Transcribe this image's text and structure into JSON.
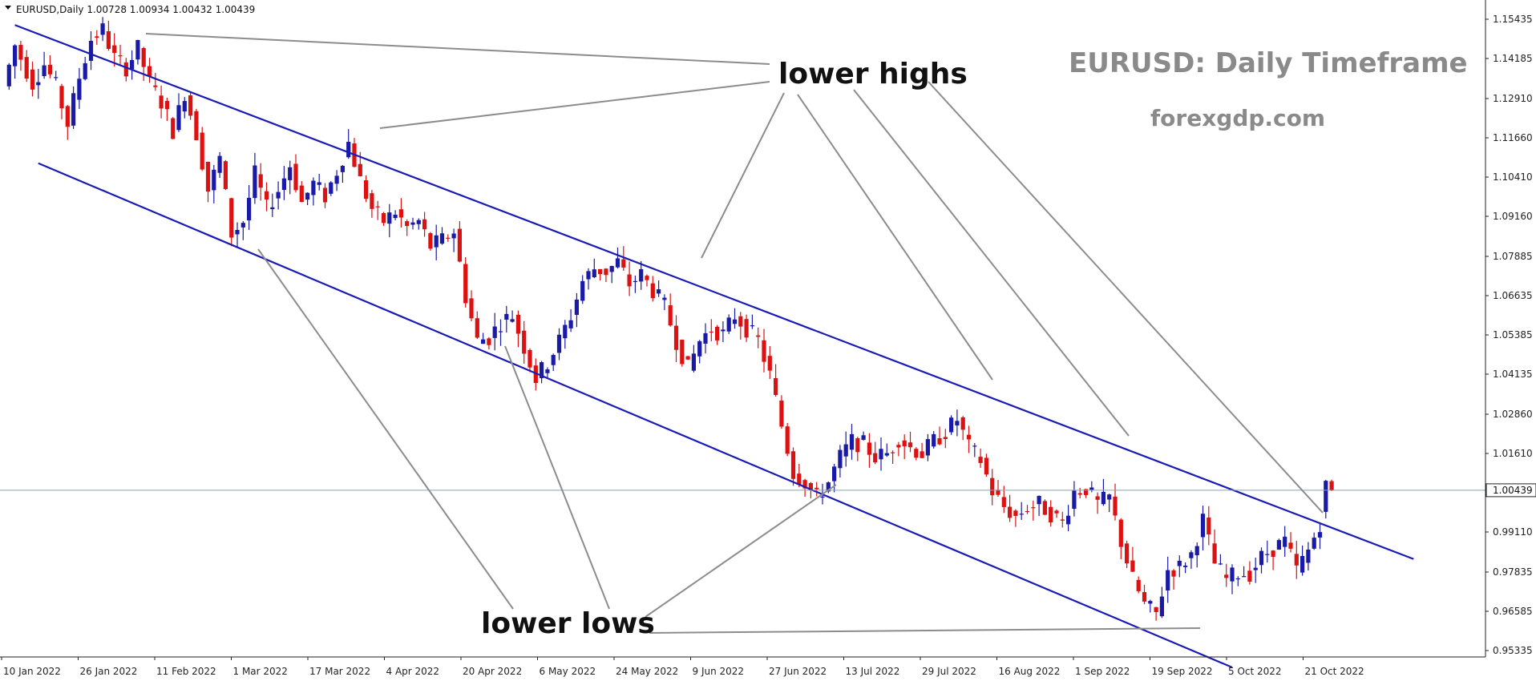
{
  "chart_data": {
    "type": "candlestick",
    "symbol_header": "EURUSD,Daily  1.00728 1.00934 1.00432 1.00439",
    "title": "EURUSD: Daily Timeframe",
    "subtitle": "forexgdp.com",
    "annotations": {
      "highs": "lower highs",
      "lows": "lower lows"
    },
    "current_price_label": "1.00439",
    "current_price": 1.00439,
    "y_ticks": [
      "1.15435",
      "1.14185",
      "1.12910",
      "1.11660",
      "1.10410",
      "1.09160",
      "1.07885",
      "1.06635",
      "1.05385",
      "1.04135",
      "1.02860",
      "1.01610",
      "0.99110",
      "0.97835",
      "0.96585",
      "0.95335"
    ],
    "x_ticks": [
      "10 Jan 2022",
      "26 Jan 2022",
      "11 Feb 2022",
      "1 Mar 2022",
      "17 Mar 2022",
      "4 Apr 2022",
      "20 Apr 2022",
      "6 May 2022",
      "24 May 2022",
      "9 Jun 2022",
      "27 Jun 2022",
      "13 Jul 2022",
      "29 Jul 2022",
      "16 Aug 2022",
      "1 Sep 2022",
      "19 Sep 2022",
      "5 Oct 2022",
      "21 Oct 2022"
    ],
    "ylim": [
      0.9475,
      1.1595
    ],
    "up_color": "#1a1aa8",
    "down_color": "#dd1111",
    "channel_color": "#1a1ab4",
    "annotation_line_color": "#8c8c8c",
    "grid": false,
    "channel": {
      "upper": [
        [
          2,
          1.1525
        ],
        [
          241,
          0.9825
        ]
      ],
      "lower": [
        [
          6,
          1.1085
        ],
        [
          210,
          0.948
        ]
      ]
    },
    "price_path": [
      [
        0,
        1.133
      ],
      [
        2,
        1.146
      ],
      [
        5,
        1.134
      ],
      [
        7,
        1.14
      ],
      [
        9,
        1.133
      ],
      [
        11,
        1.121
      ],
      [
        13,
        1.136
      ],
      [
        15,
        1.148
      ],
      [
        17,
        1.151
      ],
      [
        19,
        1.142
      ],
      [
        21,
        1.139
      ],
      [
        23,
        1.145
      ],
      [
        25,
        1.134
      ],
      [
        27,
        1.128
      ],
      [
        29,
        1.119
      ],
      [
        31,
        1.131
      ],
      [
        33,
        1.118
      ],
      [
        35,
        1.1
      ],
      [
        37,
        1.11
      ],
      [
        39,
        1.086
      ],
      [
        41,
        1.09
      ],
      [
        43,
        1.105
      ],
      [
        45,
        1.094
      ],
      [
        47,
        1.1
      ],
      [
        49,
        1.108
      ],
      [
        51,
        1.096
      ],
      [
        53,
        1.102
      ],
      [
        55,
        1.098
      ],
      [
        57,
        1.106
      ],
      [
        59,
        1.115
      ],
      [
        61,
        1.103
      ],
      [
        63,
        1.094
      ],
      [
        65,
        1.09
      ],
      [
        67,
        1.093
      ],
      [
        69,
        1.088
      ],
      [
        71,
        1.09
      ],
      [
        73,
        1.082
      ],
      [
        75,
        1.084
      ],
      [
        77,
        1.087
      ],
      [
        79,
        1.066
      ],
      [
        81,
        1.052
      ],
      [
        83,
        1.053
      ],
      [
        85,
        1.058
      ],
      [
        87,
        1.06
      ],
      [
        89,
        1.05
      ],
      [
        91,
        1.04
      ],
      [
        93,
        1.045
      ],
      [
        95,
        1.052
      ],
      [
        97,
        1.06
      ],
      [
        99,
        1.071
      ],
      [
        101,
        1.075
      ],
      [
        103,
        1.074
      ],
      [
        105,
        1.077
      ],
      [
        107,
        1.07
      ],
      [
        109,
        1.073
      ],
      [
        111,
        1.068
      ],
      [
        113,
        1.063
      ],
      [
        115,
        1.052
      ],
      [
        117,
        1.043
      ],
      [
        119,
        1.052
      ],
      [
        121,
        1.056
      ],
      [
        123,
        1.054
      ],
      [
        125,
        1.06
      ],
      [
        127,
        1.056
      ],
      [
        129,
        1.052
      ],
      [
        131,
        1.041
      ],
      [
        133,
        1.025
      ],
      [
        135,
        1.01
      ],
      [
        137,
        1.007
      ],
      [
        139,
        1.002
      ],
      [
        141,
        1.007
      ],
      [
        143,
        1.015
      ],
      [
        145,
        1.02
      ],
      [
        147,
        1.019
      ],
      [
        149,
        1.015
      ],
      [
        151,
        1.016
      ],
      [
        153,
        1.021
      ],
      [
        155,
        1.018
      ],
      [
        157,
        1.016
      ],
      [
        159,
        1.02
      ],
      [
        161,
        1.023
      ],
      [
        163,
        1.027
      ],
      [
        165,
        1.018
      ],
      [
        167,
        1.014
      ],
      [
        169,
        1.004
      ],
      [
        171,
        0.999
      ],
      [
        173,
        0.996
      ],
      [
        175,
        0.999
      ],
      [
        177,
        1.0
      ],
      [
        179,
        0.997
      ],
      [
        181,
        0.994
      ],
      [
        183,
        1.004
      ],
      [
        185,
        1.005
      ],
      [
        187,
        1.0
      ],
      [
        189,
        1.002
      ],
      [
        191,
        0.988
      ],
      [
        193,
        0.976
      ],
      [
        195,
        0.968
      ],
      [
        197,
        0.965
      ],
      [
        199,
        0.979
      ],
      [
        201,
        0.98
      ],
      [
        203,
        0.984
      ],
      [
        205,
        0.995
      ],
      [
        207,
        0.981
      ],
      [
        209,
        0.976
      ],
      [
        211,
        0.978
      ],
      [
        213,
        0.978
      ],
      [
        215,
        0.983
      ],
      [
        217,
        0.986
      ],
      [
        219,
        0.988
      ],
      [
        221,
        0.979
      ],
      [
        223,
        0.985
      ],
      [
        225,
        0.994
      ],
      [
        226,
        1.0074
      ],
      [
        227,
        1.00439
      ]
    ]
  }
}
